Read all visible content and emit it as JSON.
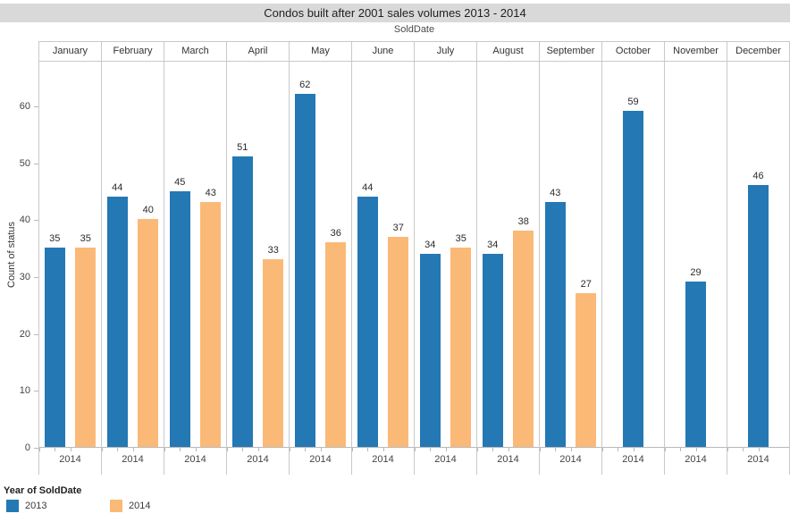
{
  "window": {
    "title": "Condos built after 2001 sales volumes 2013 - 2014"
  },
  "chart_data": {
    "type": "bar",
    "title": "Condos built after 2001 sales volumes 2013 - 2014",
    "facet_label": "SoldDate",
    "ylabel": "Count of status",
    "ylim": [
      0,
      68
    ],
    "yticks": [
      0,
      10,
      20,
      30,
      40,
      50,
      60
    ],
    "grid": false,
    "categories": [
      "January",
      "February",
      "March",
      "April",
      "May",
      "June",
      "July",
      "August",
      "September",
      "October",
      "November",
      "December"
    ],
    "series": [
      {
        "name": "2013",
        "color": "#2478b4",
        "values": [
          35,
          44,
          45,
          51,
          62,
          44,
          34,
          34,
          43,
          59,
          29,
          46
        ]
      },
      {
        "name": "2014",
        "color": "#fbb977",
        "values": [
          35,
          40,
          43,
          33,
          36,
          37,
          35,
          38,
          27,
          null,
          null,
          null
        ]
      }
    ],
    "x_tick_label_per_month": "2014",
    "legend_position": "bottom-left",
    "legend": {
      "title": "Year of SoldDate",
      "entries": [
        {
          "label": "2013",
          "color": "#2478b4"
        },
        {
          "label": "2014",
          "color": "#fbb977"
        }
      ]
    }
  },
  "colors": {
    "bar_2013": "#2478b4",
    "bar_2014": "#fbb977",
    "title_bar_bg": "#d9d9d9",
    "panel_border": "#c9c9c9",
    "axis_line": "#b9b9b9",
    "background": "#ffffff"
  }
}
